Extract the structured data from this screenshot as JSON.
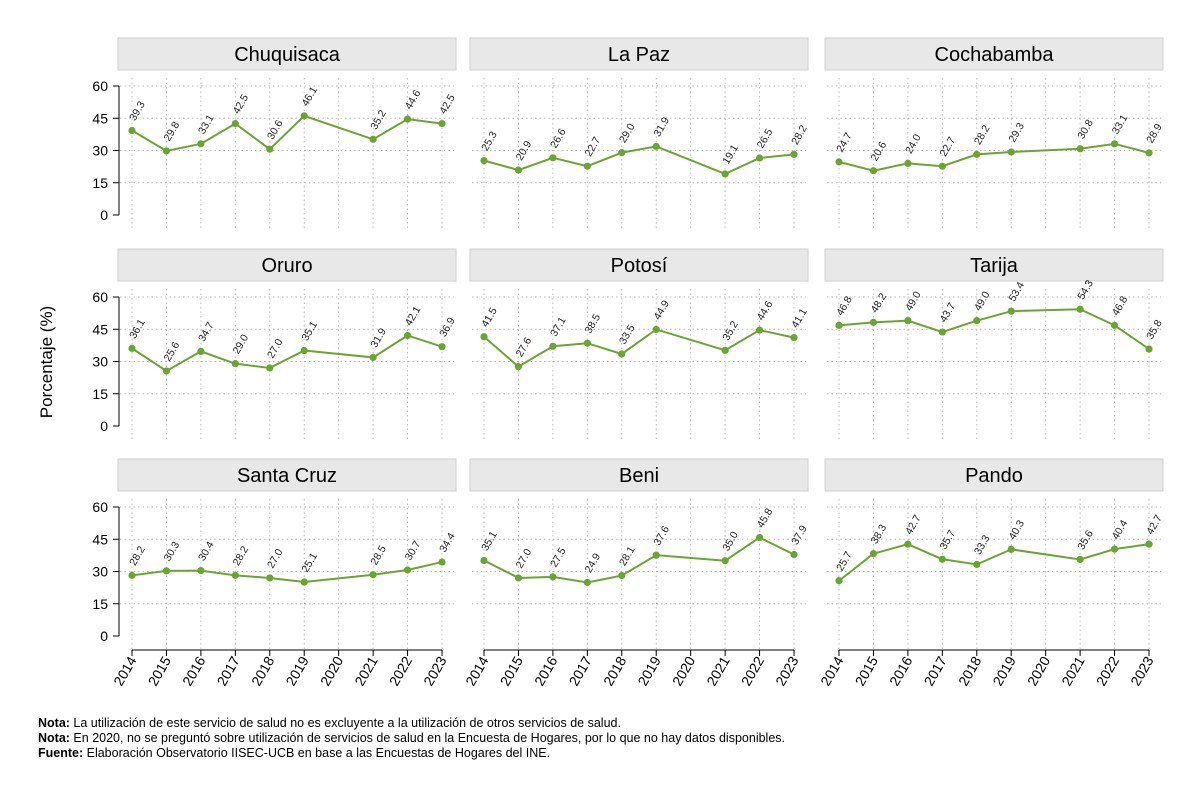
{
  "chart_data": {
    "type": "line",
    "ylabel": "Porcentaje (%)",
    "ylim": [
      0,
      60
    ],
    "yticks": [
      "0",
      "15",
      "30",
      "45",
      "60"
    ],
    "ytick_values": [
      0,
      15,
      30,
      45,
      60
    ],
    "x": [
      "2014",
      "2015",
      "2016",
      "2017",
      "2018",
      "2019",
      "2020",
      "2021",
      "2022",
      "2023"
    ],
    "grid": true,
    "line_color": "#6aa532",
    "panel_header_color": "#e8e8e8",
    "panels": [
      {
        "name": "Chuquisaca",
        "values": [
          39.3,
          29.8,
          33.1,
          42.5,
          30.6,
          46.1,
          null,
          35.2,
          44.6,
          42.5
        ],
        "labels": [
          "39.3",
          "29.8",
          "33.1",
          "42.5",
          "30.6",
          "46.1",
          "",
          "35.2",
          "44.6",
          "42.5"
        ]
      },
      {
        "name": "La Paz",
        "values": [
          25.3,
          20.9,
          26.6,
          22.7,
          29.0,
          31.9,
          null,
          19.1,
          26.5,
          28.2
        ],
        "labels": [
          "25.3",
          "20.9",
          "26.6",
          "22.7",
          "29.0",
          "31.9",
          "",
          "19.1",
          "26.5",
          "28.2"
        ]
      },
      {
        "name": "Cochabamba",
        "values": [
          24.7,
          20.6,
          24.0,
          22.7,
          28.2,
          29.3,
          null,
          30.8,
          33.1,
          28.9
        ],
        "labels": [
          "24.7",
          "20.6",
          "24.0",
          "22.7",
          "28.2",
          "29.3",
          "",
          "30.8",
          "33.1",
          "28.9"
        ]
      },
      {
        "name": "Oruro",
        "values": [
          36.1,
          25.6,
          34.7,
          29.0,
          27.0,
          35.1,
          null,
          31.9,
          42.1,
          36.9
        ],
        "labels": [
          "36.1",
          "25.6",
          "34.7",
          "29.0",
          "27.0",
          "35.1",
          "",
          "31.9",
          "42.1",
          "36.9"
        ]
      },
      {
        "name": "Potosí",
        "values": [
          41.5,
          27.6,
          37.1,
          38.5,
          33.5,
          44.9,
          null,
          35.2,
          44.6,
          41.1
        ],
        "labels": [
          "41.5",
          "27.6",
          "37.1",
          "38.5",
          "33.5",
          "44.9",
          "",
          "35.2",
          "44.6",
          "41.1"
        ]
      },
      {
        "name": "Tarija",
        "values": [
          46.8,
          48.2,
          49.0,
          43.7,
          49.0,
          53.4,
          null,
          54.3,
          46.8,
          35.8
        ],
        "labels": [
          "46.8",
          "48.2",
          "49.0",
          "43.7",
          "49.0",
          "53.4",
          "",
          "54.3",
          "46.8",
          "35.8"
        ]
      },
      {
        "name": "Santa Cruz",
        "values": [
          28.2,
          30.3,
          30.4,
          28.2,
          27.0,
          25.1,
          null,
          28.5,
          30.7,
          34.4
        ],
        "labels": [
          "28.2",
          "30.3",
          "30.4",
          "28.2",
          "27.0",
          "25.1",
          "",
          "28.5",
          "30.7",
          "34.4"
        ]
      },
      {
        "name": "Beni",
        "values": [
          35.1,
          27.0,
          27.5,
          24.9,
          28.1,
          37.6,
          null,
          35.0,
          45.8,
          37.9
        ],
        "labels": [
          "35.1",
          "27.0",
          "27.5",
          "24.9",
          "28.1",
          "37.6",
          "",
          "35.0",
          "45.8",
          "37.9"
        ]
      },
      {
        "name": "Pando",
        "values": [
          25.7,
          38.3,
          42.7,
          35.7,
          33.3,
          40.3,
          null,
          35.6,
          40.4,
          42.7
        ],
        "labels": [
          "25.7",
          "38.3",
          "42.7",
          "35.7",
          "33.3",
          "40.3",
          "",
          "35.6",
          "40.4",
          "42.7"
        ]
      }
    ]
  },
  "notes": [
    {
      "label": "Nota:",
      "text": " La utilización de este servicio de salud no es excluyente a la utilización de otros servicios de salud."
    },
    {
      "label": "Nota:",
      "text": " En 2020, no se preguntó sobre utilización de servicios de salud en la Encuesta de Hogares, por lo que no hay datos disponibles."
    },
    {
      "label": "Fuente:",
      "text": " Elaboración Observatorio IISEC-UCB en base a las Encuestas de Hogares del INE."
    }
  ]
}
